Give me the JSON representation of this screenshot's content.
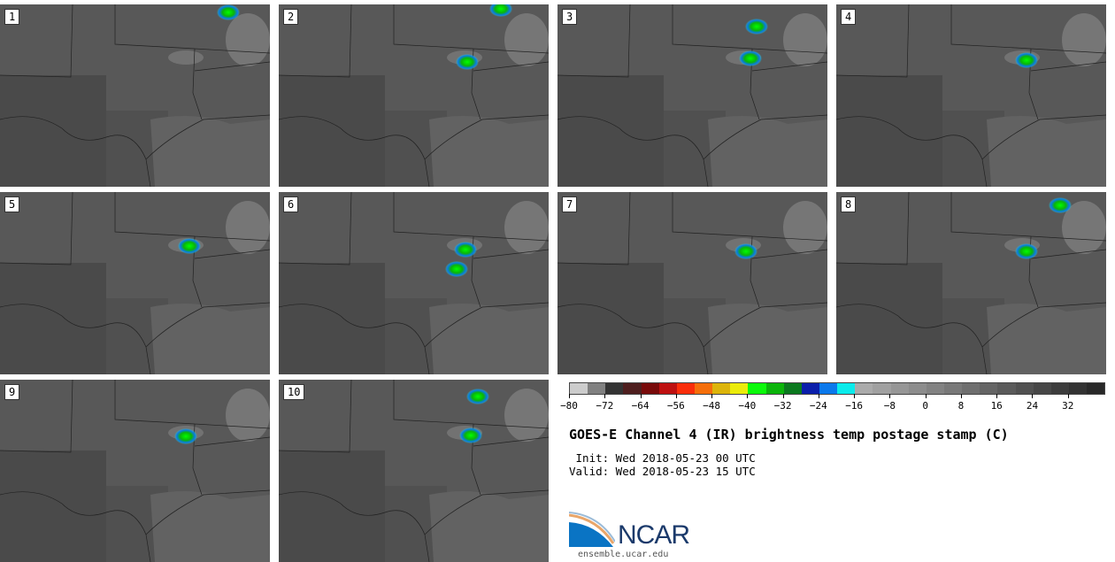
{
  "chart_data": {
    "type": "heatmap",
    "title": "GOES-E Channel 4 (IR) brightness temp postage stamp (C)",
    "init": " Init: Wed 2018-05-23 00 UTC",
    "valid": "Valid: Wed 2018-05-23 15 UTC",
    "panels": [
      "1",
      "2",
      "3",
      "4",
      "5",
      "6",
      "7",
      "8",
      "9",
      "10"
    ],
    "colorbar": {
      "range": [
        -80,
        40
      ],
      "bin_width": 4,
      "ticks": [
        "-80",
        "-72",
        "-64",
        "-56",
        "-48",
        "-40",
        "-32",
        "-24",
        "-16",
        "-8",
        "0",
        "8",
        "16",
        "24",
        "32"
      ],
      "colors": [
        "#cccccc",
        "#808080",
        "#333333",
        "#4e1e1e",
        "#780a0a",
        "#be1010",
        "#fa2d0a",
        "#f56e0a",
        "#dcb40a",
        "#ebeb0a",
        "#0afa0a",
        "#0ab40a",
        "#0a781e",
        "#0a1eaa",
        "#0a78eb",
        "#0aebeb",
        "#aaaaaa",
        "#a0a0a0",
        "#969696",
        "#8c8c8c",
        "#828282",
        "#787878",
        "#6e6e6e",
        "#646464",
        "#5a5a5a",
        "#505050",
        "#464646",
        "#3c3c3c",
        "#323232",
        "#282828"
      ]
    }
  },
  "footer": {
    "logo": "NCAR",
    "url": "ensemble.ucar.edu"
  }
}
